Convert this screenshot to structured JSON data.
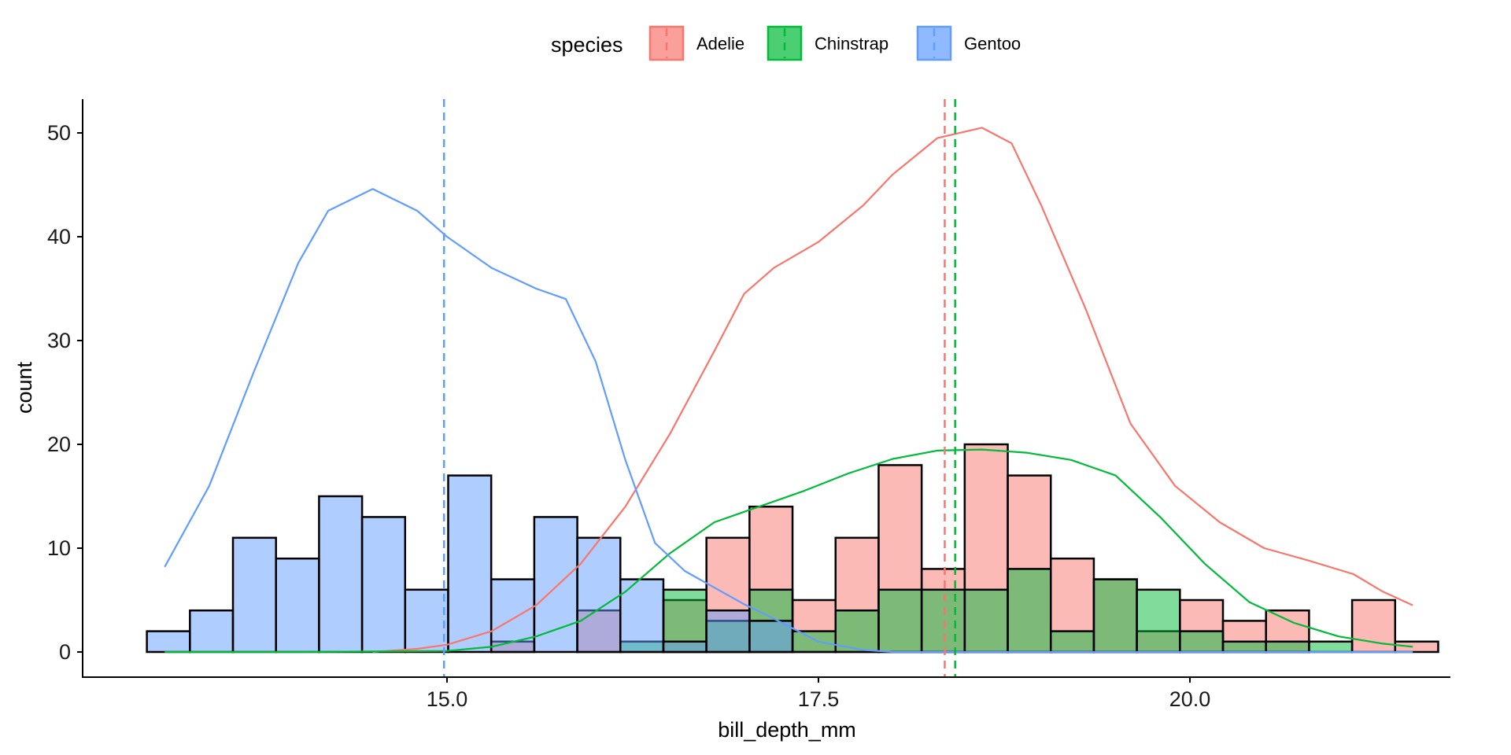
{
  "chart_data": {
    "type": "histogram",
    "title": "",
    "xlabel": "bill_depth_mm",
    "ylabel": "count",
    "xlim": [
      12.6,
      22.0
    ],
    "ylim": [
      -2.5,
      53.5
    ],
    "xticks": [
      15.0,
      17.5,
      20.0
    ],
    "xtick_labels": [
      "15.0",
      "17.5",
      "20.0"
    ],
    "yticks": [
      0,
      10,
      20,
      30,
      40,
      50
    ],
    "ytick_labels": [
      "0",
      "10",
      "20",
      "30",
      "40",
      "50"
    ],
    "grid": false,
    "bins": {
      "start": 12.98,
      "width": 0.2897,
      "count": 30
    },
    "legend": {
      "title": "species",
      "position": "top",
      "entries": [
        "Adelie",
        "Chinstrap",
        "Gentoo"
      ]
    },
    "series": [
      {
        "name": "Adelie",
        "color": "#F8766D",
        "fill": "#F8766D",
        "counts": [
          0,
          0,
          0,
          0,
          0,
          0,
          0,
          0,
          1,
          0,
          4,
          0,
          5,
          11,
          14,
          5,
          11,
          18,
          8,
          20,
          17,
          9,
          7,
          2,
          5,
          3,
          4,
          0,
          5,
          1
        ],
        "mean": 18.35,
        "density_curve": {
          "x": [
            14.5,
            14.8,
            15.0,
            15.3,
            15.6,
            15.9,
            16.2,
            16.5,
            16.8,
            17.0,
            17.2,
            17.5,
            17.8,
            18.0,
            18.3,
            18.6,
            18.8,
            19.0,
            19.3,
            19.6,
            19.9,
            20.2,
            20.5,
            20.8,
            21.1,
            21.3,
            21.5
          ],
          "y": [
            0,
            0.3,
            0.7,
            2,
            4.5,
            8.5,
            14,
            21,
            29,
            34.5,
            37,
            39.5,
            43,
            46,
            49.5,
            50.5,
            49,
            43,
            33,
            22,
            16,
            12.5,
            10,
            8.8,
            7.5,
            5.8,
            4.5
          ]
        }
      },
      {
        "name": "Chinstrap",
        "color": "#00BA38",
        "fill": "#00BA38",
        "counts": [
          0,
          0,
          0,
          0,
          0,
          0,
          0,
          0,
          0,
          0,
          0,
          1,
          6,
          3,
          6,
          2,
          4,
          6,
          6,
          6,
          8,
          2,
          7,
          6,
          2,
          1,
          1,
          1,
          0,
          0
        ],
        "mean": 18.42,
        "density_curve": {
          "x": [
            13.1,
            14.0,
            15.0,
            15.3,
            15.6,
            15.9,
            16.2,
            16.5,
            16.8,
            17.1,
            17.4,
            17.7,
            18.0,
            18.3,
            18.6,
            18.9,
            19.2,
            19.5,
            19.8,
            20.1,
            20.4,
            20.7,
            21.0,
            21.3,
            21.5
          ],
          "y": [
            0,
            0,
            0.1,
            0.5,
            1.5,
            3,
            5.8,
            9.5,
            12.5,
            14,
            15.5,
            17.2,
            18.6,
            19.4,
            19.5,
            19.2,
            18.5,
            17,
            13,
            8.5,
            4.8,
            2.8,
            1.5,
            0.8,
            0.5
          ]
        }
      },
      {
        "name": "Gentoo",
        "color": "#619CFF",
        "fill": "#619CFF",
        "counts": [
          2,
          4,
          11,
          9,
          15,
          13,
          6,
          17,
          7,
          13,
          11,
          7,
          1,
          4,
          3,
          0,
          0,
          0,
          0,
          0,
          0,
          0,
          0,
          0,
          0,
          0,
          0,
          0,
          0,
          0
        ],
        "mean": 14.98,
        "density_curve": {
          "x": [
            13.1,
            13.4,
            13.7,
            14.0,
            14.2,
            14.5,
            14.8,
            15.0,
            15.3,
            15.6,
            15.8,
            16.0,
            16.2,
            16.4,
            16.6,
            16.8,
            17.0,
            17.2,
            17.5,
            17.8,
            18.0,
            18.5,
            19.0,
            20.0,
            21.0,
            21.5
          ],
          "y": [
            8.2,
            16,
            27,
            37.5,
            42.5,
            44.6,
            42.5,
            40,
            37,
            35,
            34,
            28,
            18.5,
            10.5,
            7.8,
            6.2,
            4.6,
            3.2,
            1,
            0.2,
            0,
            0,
            0,
            0,
            0,
            0
          ]
        }
      }
    ]
  }
}
